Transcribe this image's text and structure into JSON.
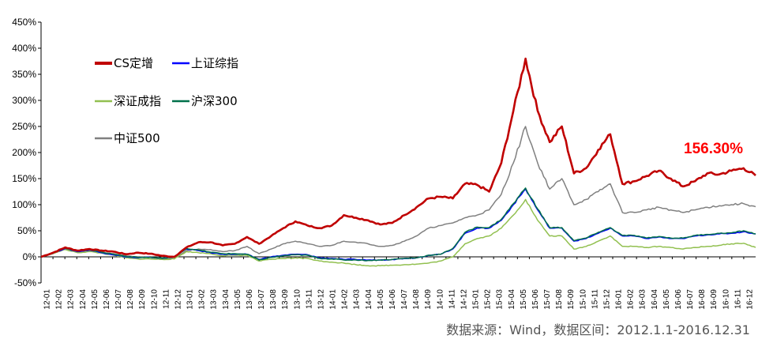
{
  "chart_data": {
    "type": "line",
    "title": "",
    "xlabel": "",
    "ylabel": "",
    "ylim": [
      -50,
      450
    ],
    "yticks": [
      "450%",
      "400%",
      "350%",
      "300%",
      "250%",
      "200%",
      "150%",
      "100%",
      "50%",
      "0%",
      "-50%"
    ],
    "ytick_values": [
      450,
      400,
      350,
      300,
      250,
      200,
      150,
      100,
      50,
      0,
      -50
    ],
    "x_ticks": [
      "12-01",
      "12-02",
      "12-03",
      "12-04",
      "12-05",
      "12-06",
      "12-07",
      "12-08",
      "12-09",
      "12-10",
      "12-11",
      "12-12",
      "13-01",
      "13-02",
      "13-03",
      "13-04",
      "13-05",
      "13-06",
      "13-07",
      "13-08",
      "13-09",
      "13-10",
      "13-11",
      "13-12",
      "14-01",
      "14-02",
      "14-03",
      "14-04",
      "14-05",
      "14-06",
      "14-07",
      "14-08",
      "14-09",
      "14-10",
      "14-11",
      "14-12",
      "15-01",
      "15-02",
      "15-03",
      "15-04",
      "15-05",
      "15-06",
      "15-07",
      "15-08",
      "15-09",
      "15-10",
      "15-11",
      "15-12",
      "16-01",
      "16-02",
      "16-03",
      "16-04",
      "16-05",
      "16-06",
      "16-07",
      "16-08",
      "16-09",
      "16-10",
      "16-11",
      "16-12"
    ],
    "grid": false,
    "legend_position": "top-left",
    "series": [
      {
        "name": "CS定增",
        "color": "#C00000",
        "values": [
          0,
          8,
          18,
          12,
          15,
          12,
          10,
          5,
          8,
          6,
          2,
          0,
          18,
          28,
          28,
          22,
          25,
          38,
          25,
          40,
          55,
          68,
          60,
          55,
          60,
          80,
          75,
          70,
          62,
          65,
          80,
          95,
          112,
          115,
          112,
          140,
          138,
          125,
          180,
          280,
          380,
          280,
          220,
          250,
          160,
          170,
          205,
          235,
          140,
          145,
          155,
          165,
          150,
          135,
          145,
          160,
          158,
          165,
          170,
          156
        ]
      },
      {
        "name": "上证综指",
        "color": "#0000FF",
        "values": [
          0,
          8,
          16,
          10,
          13,
          8,
          4,
          0,
          -2,
          -1,
          -3,
          0,
          15,
          12,
          8,
          5,
          5,
          5,
          -5,
          0,
          3,
          5,
          4,
          -2,
          -3,
          -5,
          -5,
          -6,
          -6,
          -5,
          -3,
          -2,
          3,
          5,
          15,
          45,
          55,
          55,
          70,
          100,
          130,
          90,
          55,
          55,
          30,
          35,
          45,
          55,
          40,
          40,
          35,
          38,
          35,
          35,
          40,
          42,
          44,
          45,
          48,
          44
        ]
      },
      {
        "name": "深证成指",
        "color": "#92C050",
        "values": [
          0,
          7,
          14,
          8,
          10,
          7,
          3,
          -2,
          -4,
          -4,
          -5,
          -4,
          10,
          8,
          6,
          2,
          3,
          3,
          -8,
          -5,
          -3,
          -2,
          -3,
          -8,
          -10,
          -12,
          -15,
          -17,
          -17,
          -16,
          -15,
          -14,
          -12,
          -8,
          0,
          25,
          35,
          40,
          55,
          80,
          110,
          70,
          40,
          40,
          15,
          20,
          30,
          40,
          20,
          20,
          18,
          20,
          18,
          15,
          18,
          20,
          22,
          25,
          26,
          18
        ]
      },
      {
        "name": "沪深300",
        "color": "#00704A",
        "values": [
          0,
          8,
          17,
          11,
          14,
          9,
          5,
          1,
          -1,
          -1,
          -3,
          0,
          16,
          13,
          9,
          6,
          6,
          5,
          -6,
          -1,
          2,
          4,
          3,
          -3,
          -4,
          -6,
          -6,
          -7,
          -6,
          -5,
          -3,
          -2,
          3,
          5,
          16,
          47,
          57,
          56,
          72,
          102,
          132,
          92,
          56,
          56,
          31,
          36,
          47,
          56,
          41,
          41,
          36,
          39,
          36,
          36,
          41,
          43,
          45,
          46,
          50,
          44
        ]
      },
      {
        "name": "中证500",
        "color": "#808080",
        "values": [
          0,
          6,
          15,
          9,
          12,
          9,
          6,
          2,
          0,
          -1,
          -4,
          -3,
          12,
          15,
          14,
          10,
          12,
          20,
          6,
          15,
          25,
          30,
          25,
          20,
          22,
          30,
          28,
          25,
          20,
          22,
          30,
          40,
          55,
          60,
          65,
          75,
          80,
          90,
          120,
          180,
          250,
          180,
          130,
          150,
          100,
          110,
          125,
          140,
          85,
          85,
          90,
          95,
          90,
          85,
          90,
          95,
          98,
          100,
          102,
          96
        ]
      }
    ],
    "annotations": [
      {
        "text": "156.30%",
        "color": "#FF0000"
      }
    ],
    "source": "数据来源：Wind，数据区间：2012.1.1-2016.12.31"
  }
}
